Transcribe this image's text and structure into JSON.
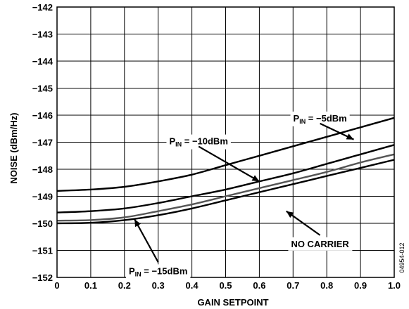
{
  "chart_data": {
    "type": "line",
    "title": "",
    "xlabel": "GAIN SETPOINT",
    "ylabel": "NOISE (dBm/Hz)",
    "xlim": [
      0,
      1.0
    ],
    "ylim": [
      -152,
      -142
    ],
    "grid": true,
    "x_ticks": [
      "0",
      "0.1",
      "0.2",
      "0.3",
      "0.4",
      "0.5",
      "0.6",
      "0.7",
      "0.8",
      "0.9",
      "1.0"
    ],
    "y_ticks": [
      "−142",
      "−143",
      "−144",
      "−145",
      "−146",
      "−147",
      "−148",
      "−149",
      "−150",
      "−151",
      "−152"
    ],
    "x": [
      0,
      0.1,
      0.2,
      0.3,
      0.4,
      0.5,
      0.6,
      0.7,
      0.8,
      0.9,
      1.0
    ],
    "series": [
      {
        "values": [
          -148.8,
          -148.75,
          -148.65,
          -148.45,
          -148.2,
          -147.85,
          -147.5,
          -147.15,
          -146.8,
          -146.45,
          -146.1
        ],
        "color": "#000000"
      },
      {
        "values": [
          -149.6,
          -149.55,
          -149.45,
          -149.25,
          -149.0,
          -148.75,
          -148.45,
          -148.15,
          -147.8,
          -147.45,
          -147.1
        ],
        "color": "#000000"
      },
      {
        "values": [
          -149.9,
          -149.88,
          -149.78,
          -149.55,
          -149.3,
          -149.0,
          -148.7,
          -148.4,
          -148.1,
          -147.75,
          -147.45
        ],
        "color": "#555555"
      },
      {
        "values": [
          -150.0,
          -149.98,
          -149.88,
          -149.7,
          -149.45,
          -149.15,
          -148.85,
          -148.55,
          -148.25,
          -147.95,
          -147.65
        ],
        "color": "#000000"
      }
    ],
    "annotations": [
      {
        "main": "P",
        "sub": "IN",
        "rest": " = −5dBm"
      },
      {
        "main": "P",
        "sub": "IN",
        "rest": " = −10dBm"
      },
      {
        "main": "NO CARRIER",
        "sub": "",
        "rest": ""
      },
      {
        "main": "P",
        "sub": "IN",
        "rest": " = −15dBm"
      }
    ],
    "figure_id": "04954-012"
  }
}
